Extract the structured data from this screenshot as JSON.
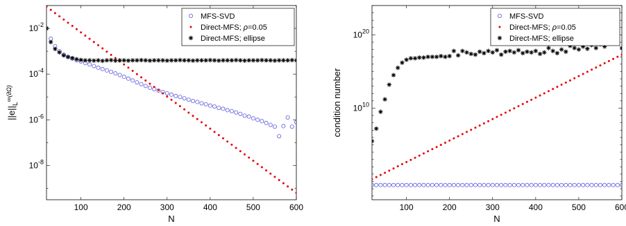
{
  "chart_data": [
    {
      "type": "scatter",
      "xlabel": "N",
      "ylabel": "||e||",
      "ylabel_sub": "L",
      "ylabel_sup": "∞",
      "ylabel_sup_tail": "(∂Ω)",
      "xlim": [
        20,
        600
      ],
      "ylim_log10": [
        -9.5,
        -1.0
      ],
      "yscale": "log",
      "xticks": [
        100,
        200,
        300,
        400,
        500,
        600
      ],
      "xtick_labels": [
        "100",
        "200",
        "300",
        "400",
        "500",
        "600"
      ],
      "yticks_log10": [
        -8,
        -6,
        -4,
        -2
      ],
      "ytick_base": "10",
      "ytick_exps": [
        "-8",
        "-6",
        "-4",
        "-2"
      ],
      "legend_placement": "top-right",
      "series": [
        {
          "name": "MFS-SVD",
          "marker": "circle",
          "color": "#5a5adc",
          "x": [
            20,
            30,
            40,
            50,
            60,
            70,
            80,
            90,
            100,
            110,
            120,
            130,
            140,
            150,
            160,
            170,
            180,
            190,
            200,
            210,
            220,
            230,
            240,
            250,
            260,
            270,
            280,
            290,
            300,
            310,
            320,
            330,
            340,
            350,
            360,
            370,
            380,
            390,
            400,
            410,
            420,
            430,
            440,
            450,
            460,
            470,
            480,
            490,
            500,
            510,
            520,
            530,
            540,
            550,
            560,
            570,
            580,
            590,
            600
          ],
          "log10_y": [
            -2.0,
            -2.45,
            -2.78,
            -3.0,
            -3.15,
            -3.25,
            -3.32,
            -3.4,
            -3.45,
            -3.52,
            -3.58,
            -3.65,
            -3.72,
            -3.78,
            -3.84,
            -3.9,
            -3.97,
            -4.04,
            -4.12,
            -4.2,
            -4.28,
            -4.36,
            -4.44,
            -4.52,
            -4.6,
            -4.66,
            -4.72,
            -4.78,
            -4.84,
            -4.9,
            -4.96,
            -5.0,
            -5.06,
            -5.12,
            -5.18,
            -5.22,
            -5.28,
            -5.32,
            -5.38,
            -5.42,
            -5.48,
            -5.52,
            -5.58,
            -5.62,
            -5.68,
            -5.74,
            -5.82,
            -5.86,
            -5.94,
            -6.0,
            -6.06,
            -6.14,
            -6.22,
            -6.3,
            -6.72,
            -6.28,
            -5.9,
            -6.3,
            -6.1
          ]
        },
        {
          "name": "Direct-MFS;  ρ=0.05",
          "name_prefix": "Direct-MFS;  ",
          "name_rho": "ρ",
          "name_suffix": "=0.05",
          "marker": "dot",
          "color": "#e8000b",
          "x_start": 20,
          "x_step": 10,
          "count": 59,
          "log10_y_start": -1.05,
          "log10_y_end": -9.2
        },
        {
          "name": "Direct-MFS; ellipse",
          "marker": "asterisk",
          "color": "#000000",
          "x": [
            20,
            30,
            40,
            50,
            60,
            70,
            80,
            90,
            100,
            110,
            120,
            130,
            140,
            150,
            160,
            170,
            180,
            190,
            200,
            210,
            220,
            230,
            240,
            250,
            260,
            270,
            280,
            290,
            300,
            310,
            320,
            330,
            340,
            350,
            360,
            370,
            380,
            390,
            400,
            410,
            420,
            430,
            440,
            450,
            460,
            470,
            480,
            490,
            500,
            510,
            520,
            530,
            540,
            550,
            560,
            570,
            580,
            590,
            600
          ],
          "log10_y": [
            -2.0,
            -2.6,
            -2.9,
            -3.05,
            -3.18,
            -3.25,
            -3.3,
            -3.35,
            -3.38,
            -3.4,
            -3.4,
            -3.41,
            -3.4,
            -3.42,
            -3.4,
            -3.39,
            -3.41,
            -3.4,
            -3.4,
            -3.41,
            -3.4,
            -3.4,
            -3.39,
            -3.4,
            -3.41,
            -3.4,
            -3.4,
            -3.4,
            -3.41,
            -3.4,
            -3.4,
            -3.39,
            -3.4,
            -3.4,
            -3.41,
            -3.4,
            -3.4,
            -3.4,
            -3.39,
            -3.4,
            -3.41,
            -3.4,
            -3.4,
            -3.4,
            -3.39,
            -3.4,
            -3.41,
            -3.4,
            -3.4,
            -3.4,
            -3.39,
            -3.4,
            -3.4,
            -3.41,
            -3.4,
            -3.4,
            -3.4,
            -3.39,
            -3.4
          ]
        }
      ]
    },
    {
      "type": "scatter",
      "xlabel": "N",
      "ylabel": "condition number",
      "xlim": [
        20,
        600
      ],
      "ylim_log10": [
        -2.5,
        24.0
      ],
      "yscale": "log",
      "xticks": [
        100,
        200,
        300,
        400,
        500,
        600
      ],
      "xtick_labels": [
        "100",
        "200",
        "300",
        "400",
        "500",
        "600"
      ],
      "yticks_log10": [
        10,
        20
      ],
      "ytick_base": "10",
      "ytick_exps": [
        "10",
        "20"
      ],
      "legend_placement": "top-left",
      "series": [
        {
          "name": "MFS-SVD",
          "marker": "circle",
          "color": "#5a5adc",
          "x_start": 20,
          "x_step": 10,
          "count": 59,
          "log10_y_const": -0.5
        },
        {
          "name": "Direct-MFS;  ρ=0.05",
          "name_prefix": "Direct-MFS;  ",
          "name_rho": "ρ",
          "name_suffix": "=0.05",
          "marker": "dot",
          "color": "#e8000b",
          "x_start": 20,
          "x_step": 10,
          "count": 59,
          "log10_y_start": 0.3,
          "log10_y_end": 17.3
        },
        {
          "name": "Direct-MFS; ellipse",
          "marker": "asterisk",
          "color": "#000000",
          "x": [
            20,
            30,
            40,
            50,
            60,
            70,
            80,
            90,
            100,
            110,
            120,
            130,
            140,
            150,
            160,
            170,
            180,
            190,
            200,
            210,
            220,
            230,
            240,
            250,
            260,
            270,
            280,
            290,
            300,
            310,
            320,
            330,
            340,
            350,
            360,
            370,
            380,
            390,
            400,
            410,
            420,
            430,
            440,
            450,
            460,
            470,
            480,
            490,
            500,
            510,
            520,
            530,
            540,
            550,
            560,
            570,
            580,
            590,
            600
          ],
          "log10_y": [
            5.5,
            7.2,
            9.5,
            11.2,
            13.2,
            14.5,
            15.5,
            16.2,
            16.6,
            16.8,
            16.8,
            16.9,
            16.9,
            17.0,
            17.0,
            17.0,
            17.1,
            17.0,
            17.1,
            17.8,
            17.2,
            17.8,
            17.6,
            17.4,
            17.3,
            17.7,
            17.5,
            17.8,
            17.6,
            17.9,
            17.3,
            17.7,
            17.8,
            17.6,
            17.9,
            17.5,
            17.7,
            17.6,
            17.8,
            17.4,
            17.6,
            18.2,
            17.8,
            17.5,
            18.0,
            17.7,
            18.5,
            18.2,
            18.0,
            18.4,
            18.1,
            18.6,
            18.2,
            18.7,
            18.4,
            18.9,
            19.5,
            19.1,
            18.2
          ]
        }
      ]
    }
  ]
}
